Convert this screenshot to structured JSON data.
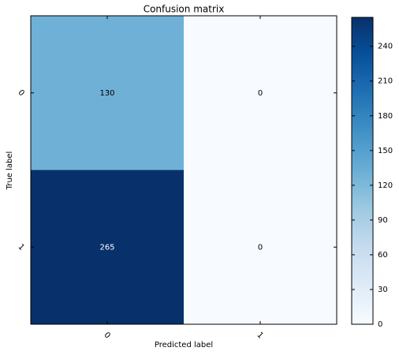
{
  "chart_data": {
    "type": "heatmap",
    "title": "Confusion matrix",
    "x_label": "Predicted label",
    "y_label": "True label",
    "x_categories": [
      "0",
      "1"
    ],
    "y_categories": [
      "0",
      "1"
    ],
    "values": [
      [
        130,
        0
      ],
      [
        265,
        0
      ]
    ],
    "colormap": [
      "#f7fbff",
      "#deebf7",
      "#c6dbef",
      "#9ecae1",
      "#6baed6",
      "#4292c6",
      "#2171b5",
      "#08519c",
      "#08306b"
    ],
    "clim": [
      0,
      265
    ],
    "cticks": [
      0,
      30,
      60,
      90,
      120,
      150,
      180,
      210,
      240
    ]
  }
}
